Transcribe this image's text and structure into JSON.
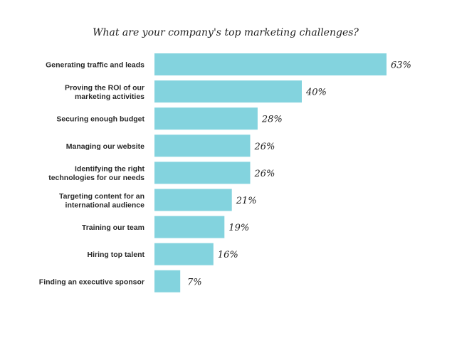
{
  "chart_data": {
    "type": "bar",
    "orientation": "horizontal",
    "title": "What are your company's top marketing challenges?",
    "categories": [
      [
        "Generating traffic and leads"
      ],
      [
        "Proving the ROI of our",
        "marketing activities"
      ],
      [
        "Securing enough budget"
      ],
      [
        "Managing our website"
      ],
      [
        "Identifying the right",
        "technologies for our needs"
      ],
      [
        "Targeting content for an",
        "international audience"
      ],
      [
        "Training our team"
      ],
      [
        "Hiring top talent"
      ],
      [
        "Finding an executive sponsor"
      ]
    ],
    "values": [
      63,
      40,
      28,
      26,
      26,
      21,
      19,
      16,
      7
    ],
    "value_labels": [
      "63%",
      "40%",
      "28%",
      "26%",
      "26%",
      "21%",
      "19%",
      "16%",
      "7%"
    ],
    "unit": "%",
    "xlim": [
      0,
      63
    ],
    "grid": false,
    "legend": "none",
    "bar_color": "#83d3de"
  }
}
